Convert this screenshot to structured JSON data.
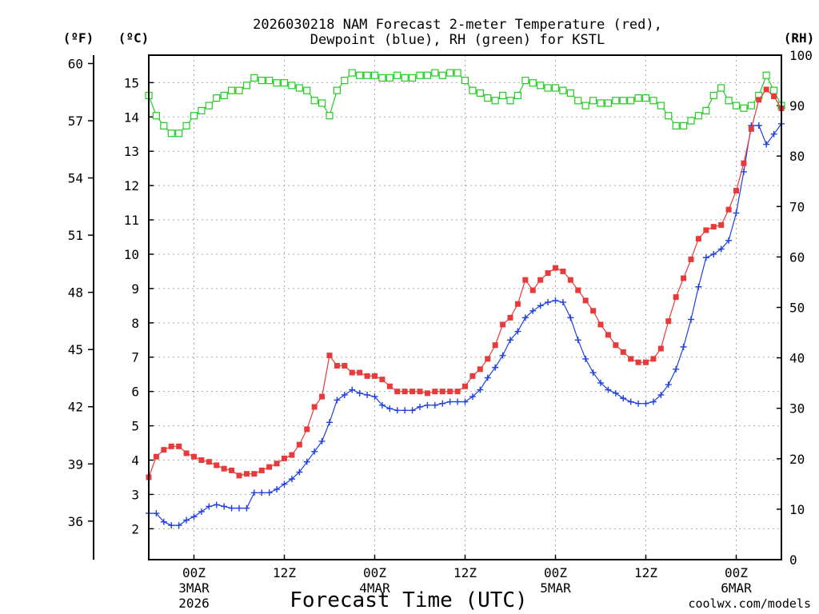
{
  "colors": {
    "temperature": "#e83a3a",
    "dewpoint": "#2040e0",
    "rh": "#22cc22",
    "grid": "#aaaaaa",
    "credit": "#e03030"
  },
  "chart_data": {
    "type": "line",
    "title_line1": "2026030218 NAM Forecast 2-meter Temperature (red),",
    "title_line2": "Dewpoint (blue), RH (green) for KSTL",
    "xlabel": "Forecast Time (UTC)",
    "credit": "coolwx.com/models",
    "x_units": "forecast hour from 2026-03-02 18Z",
    "xlim": [
      0,
      84
    ],
    "x_ticks": [
      {
        "x": 6,
        "label": "00Z",
        "day": "3MAR",
        "year": "2026"
      },
      {
        "x": 18,
        "label": "12Z",
        "day": "",
        "year": ""
      },
      {
        "x": 30,
        "label": "00Z",
        "day": "4MAR",
        "year": ""
      },
      {
        "x": 42,
        "label": "12Z",
        "day": "",
        "year": ""
      },
      {
        "x": 54,
        "label": "00Z",
        "day": "5MAR",
        "year": ""
      },
      {
        "x": 66,
        "label": "12Z",
        "day": "",
        "year": ""
      },
      {
        "x": 78,
        "label": "00Z",
        "day": "6MAR",
        "year": ""
      }
    ],
    "celsius_axis": {
      "unit_label": "(ºC)",
      "ylim": [
        1.1,
        15.8
      ],
      "ticks": [
        "2",
        "3",
        "4",
        "5",
        "6",
        "7",
        "8",
        "9",
        "10",
        "11",
        "12",
        "13",
        "14",
        "15"
      ]
    },
    "fahrenheit_axis": {
      "unit_label": "(ºF)",
      "ticks": [
        "36",
        "39",
        "42",
        "45",
        "48",
        "51",
        "54",
        "57",
        "60"
      ]
    },
    "rh_axis": {
      "unit_label": "(RH)",
      "ylim": [
        0,
        100
      ],
      "ticks": [
        "0",
        "10",
        "20",
        "30",
        "40",
        "50",
        "60",
        "70",
        "80",
        "90",
        "100"
      ]
    },
    "x": [
      0,
      1,
      2,
      3,
      4,
      5,
      6,
      7,
      8,
      9,
      10,
      11,
      12,
      13,
      14,
      15,
      16,
      17,
      18,
      19,
      20,
      21,
      22,
      23,
      24,
      25,
      26,
      27,
      28,
      29,
      30,
      31,
      32,
      33,
      34,
      35,
      36,
      37,
      38,
      39,
      40,
      41,
      42,
      43,
      44,
      45,
      46,
      47,
      48,
      49,
      50,
      51,
      52,
      53,
      54,
      55,
      56,
      57,
      58,
      59,
      60,
      61,
      62,
      63,
      64,
      65,
      66,
      67,
      68,
      69,
      70,
      71,
      72,
      73,
      74,
      75,
      76,
      77,
      78,
      79,
      80,
      81,
      82,
      83,
      84
    ],
    "series": [
      {
        "name": "Temperature",
        "unit": "C",
        "axis": "celsius",
        "values": [
          3.5,
          4.1,
          4.3,
          4.4,
          4.4,
          4.2,
          4.1,
          4.0,
          3.95,
          3.85,
          3.75,
          3.7,
          3.55,
          3.6,
          3.6,
          3.7,
          3.8,
          3.9,
          4.05,
          4.15,
          4.45,
          4.9,
          5.55,
          5.85,
          7.05,
          6.75,
          6.75,
          6.55,
          6.55,
          6.45,
          6.45,
          6.35,
          6.15,
          6.0,
          6.0,
          6.0,
          6.0,
          5.95,
          6.0,
          6.0,
          6.0,
          6.0,
          6.15,
          6.45,
          6.65,
          6.95,
          7.35,
          7.95,
          8.15,
          8.55,
          9.25,
          8.95,
          9.25,
          9.45,
          9.6,
          9.5,
          9.25,
          8.95,
          8.65,
          8.35,
          7.95,
          7.65,
          7.35,
          7.15,
          6.95,
          6.85,
          6.85,
          6.95,
          7.25,
          8.05,
          8.75,
          9.3,
          9.85,
          10.45,
          10.7,
          10.8,
          10.85,
          11.3,
          11.85,
          12.65,
          13.65,
          14.5,
          14.8,
          14.6,
          14.25
        ]
      },
      {
        "name": "Dewpoint",
        "unit": "C",
        "axis": "celsius",
        "values": [
          2.45,
          2.45,
          2.2,
          2.1,
          2.1,
          2.25,
          2.35,
          2.5,
          2.65,
          2.7,
          2.65,
          2.6,
          2.6,
          2.6,
          3.05,
          3.05,
          3.05,
          3.15,
          3.3,
          3.45,
          3.65,
          3.95,
          4.25,
          4.55,
          5.1,
          5.75,
          5.9,
          6.05,
          5.95,
          5.9,
          5.85,
          5.6,
          5.5,
          5.45,
          5.45,
          5.45,
          5.55,
          5.6,
          5.6,
          5.65,
          5.7,
          5.7,
          5.7,
          5.85,
          6.05,
          6.4,
          6.7,
          7.05,
          7.5,
          7.75,
          8.15,
          8.35,
          8.5,
          8.6,
          8.65,
          8.6,
          8.15,
          7.5,
          6.95,
          6.55,
          6.25,
          6.05,
          5.95,
          5.8,
          5.7,
          5.65,
          5.65,
          5.7,
          5.9,
          6.2,
          6.65,
          7.3,
          8.1,
          9.05,
          9.9,
          10.0,
          10.15,
          10.4,
          11.2,
          12.4,
          13.75,
          13.75,
          13.2,
          13.5,
          13.8
        ]
      },
      {
        "name": "RH",
        "unit": "%",
        "axis": "rh",
        "values": [
          92,
          88,
          86,
          84.5,
          84.5,
          86,
          88,
          89,
          90,
          91.5,
          92,
          93,
          93,
          94,
          95.5,
          95,
          95,
          94.5,
          94.5,
          94,
          93.5,
          93,
          91,
          90.5,
          88,
          93,
          95,
          96.5,
          96,
          96,
          96,
          95.5,
          95.5,
          96,
          95.5,
          95.5,
          96,
          96,
          96.5,
          96,
          96.5,
          96.5,
          95,
          93,
          92.5,
          91.5,
          91,
          92,
          91,
          92,
          95,
          94.5,
          94,
          93.5,
          93.5,
          93,
          92.5,
          91,
          90,
          91,
          90.5,
          90.5,
          91,
          91,
          91,
          91.5,
          91.5,
          91,
          90,
          88,
          86,
          86,
          87,
          88,
          89,
          92,
          93.5,
          91,
          90,
          89.5,
          90,
          92,
          96,
          93,
          90
        ]
      }
    ]
  }
}
